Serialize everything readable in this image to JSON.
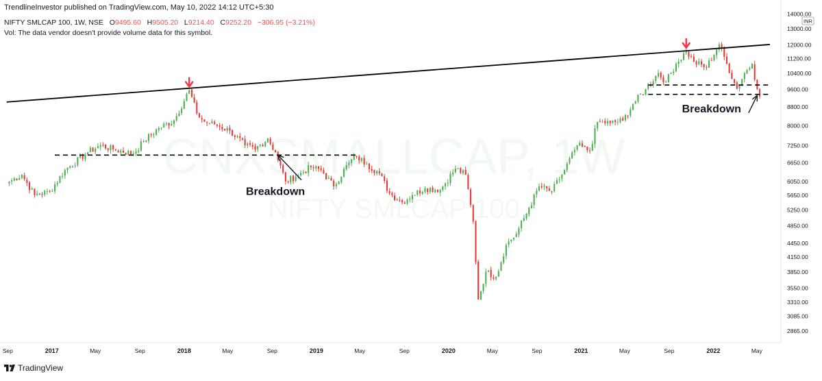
{
  "header": {
    "publisher": "TrendlineInvestor published on TradingView.com, May 10, 2022 14:12 UTC+5:30",
    "symbol": "NIFTY SMLCAP 100, 1W, NSE",
    "ohlc": {
      "o_label": "O",
      "o": "9495.60",
      "h_label": "H",
      "h": "9505.20",
      "l_label": "L",
      "l": "9214.40",
      "c_label": "C",
      "c": "9252.20",
      "change": "−306.95 (−3.21%)"
    },
    "vol_note": "Vol: The data vendor doesn't provide volume data for this symbol."
  },
  "watermark": {
    "line1": "CNXSMALLCAP, 1W",
    "line2": "NIFTY SMLCAP 100"
  },
  "footer": {
    "brand": "TradingView"
  },
  "colors": {
    "up": "#26a69a",
    "down": "#ef5350",
    "up_candle": "#4caf50",
    "down_candle": "#e53935",
    "arrow": "#f23645",
    "trendline": "#000000",
    "axis_text": "#131722"
  },
  "chart_data": {
    "type": "candlestick",
    "title": "NIFTY SMLCAP 100, 1W, NSE",
    "currency": "INR",
    "y_scale": "log",
    "ylim": [
      2700,
      14000
    ],
    "y_ticks": [
      "14000.00",
      "13000.00",
      "12000.00",
      "11200.00",
      "10400.00",
      "9600.00",
      "8800.00",
      "8000.00",
      "7250.00",
      "6650.00",
      "6050.00",
      "5650.00",
      "5250.00",
      "4850.00",
      "4450.00",
      "4150.00",
      "3850.00",
      "3550.00",
      "3310.00",
      "3085.00",
      "2865.00"
    ],
    "x_ticks": [
      "Sep",
      "2017",
      "May",
      "Sep",
      "2018",
      "May",
      "Sep",
      "2019",
      "May",
      "Sep",
      "2020",
      "May",
      "Sep",
      "2021",
      "May",
      "Sep",
      "2022",
      "May"
    ],
    "x_range": [
      "2016-09",
      "2022-05"
    ],
    "weekly_close_anchors": [
      [
        "2016-09-05",
        6050
      ],
      [
        "2016-10-10",
        6250
      ],
      [
        "2016-11-14",
        5650
      ],
      [
        "2016-12-26",
        5750
      ],
      [
        "2017-02-06",
        6400
      ],
      [
        "2017-04-10",
        7000
      ],
      [
        "2017-05-15",
        7250
      ],
      [
        "2017-06-19",
        7100
      ],
      [
        "2017-08-14",
        6950
      ],
      [
        "2017-09-11",
        7400
      ],
      [
        "2017-10-23",
        7900
      ],
      [
        "2017-12-04",
        8200
      ],
      [
        "2018-01-15",
        9550
      ],
      [
        "2018-02-05",
        8500
      ],
      [
        "2018-02-26",
        8150
      ],
      [
        "2018-03-26",
        8050
      ],
      [
        "2018-05-07",
        7800
      ],
      [
        "2018-06-18",
        7250
      ],
      [
        "2018-07-16",
        7100
      ],
      [
        "2018-08-20",
        7500
      ],
      [
        "2018-09-10",
        7000
      ],
      [
        "2018-10-08",
        6050
      ],
      [
        "2018-11-05",
        6200
      ],
      [
        "2018-12-17",
        6500
      ],
      [
        "2019-01-14",
        6400
      ],
      [
        "2019-02-18",
        5900
      ],
      [
        "2019-04-01",
        6650
      ],
      [
        "2019-04-22",
        6850
      ],
      [
        "2019-05-20",
        6600
      ],
      [
        "2019-06-24",
        6300
      ],
      [
        "2019-07-22",
        5700
      ],
      [
        "2019-08-26",
        5450
      ],
      [
        "2019-09-23",
        5650
      ],
      [
        "2019-10-28",
        5850
      ],
      [
        "2019-12-09",
        5800
      ],
      [
        "2020-01-20",
        6450
      ],
      [
        "2020-02-17",
        6250
      ],
      [
        "2020-03-09",
        4950
      ],
      [
        "2020-03-23",
        3350
      ],
      [
        "2020-04-13",
        3850
      ],
      [
        "2020-05-11",
        3750
      ],
      [
        "2020-06-08",
        4400
      ],
      [
        "2020-07-06",
        4650
      ],
      [
        "2020-08-10",
        5300
      ],
      [
        "2020-09-07",
        5900
      ],
      [
        "2020-10-12",
        5750
      ],
      [
        "2020-11-16",
        6400
      ],
      [
        "2020-12-21",
        7250
      ],
      [
        "2021-01-25",
        7050
      ],
      [
        "2021-02-15",
        8150
      ],
      [
        "2021-03-22",
        8100
      ],
      [
        "2021-04-26",
        8200
      ],
      [
        "2021-05-24",
        8900
      ],
      [
        "2021-06-28",
        9600
      ],
      [
        "2021-08-02",
        10400
      ],
      [
        "2021-08-23",
        9950
      ],
      [
        "2021-09-20",
        10900
      ],
      [
        "2021-10-18",
        11600
      ],
      [
        "2021-11-08",
        11000
      ],
      [
        "2021-12-13",
        10700
      ],
      [
        "2022-01-17",
        12000
      ],
      [
        "2022-02-07",
        10900
      ],
      [
        "2022-03-07",
        9600
      ],
      [
        "2022-03-28",
        10400
      ],
      [
        "2022-04-18",
        10900
      ],
      [
        "2022-05-02",
        9600
      ],
      [
        "2022-05-09",
        9252.2
      ]
    ],
    "annotations": [
      {
        "type": "trendline",
        "from": [
          "2016-08-29",
          9000
        ],
        "to": [
          "2022-06-06",
          12000
        ]
      },
      {
        "type": "dashed_hline",
        "from": "2017-01-09",
        "to": "2019-04-22",
        "price": 6900
      },
      {
        "type": "dashed_hline",
        "from": "2021-07-05",
        "to": "2022-06-06",
        "price": 9800
      },
      {
        "type": "dashed_hline",
        "from": "2021-07-05",
        "to": "2022-06-06",
        "price": 9350
      },
      {
        "type": "red_arrow",
        "date": "2018-01-15",
        "price": 9550
      },
      {
        "type": "red_arrow",
        "date": "2021-10-18",
        "price": 11600
      },
      {
        "type": "text_arrow",
        "text": "Breakdown",
        "text_at": [
          "2018-09-10",
          5650
        ],
        "points_to": [
          "2018-09-17",
          6900
        ]
      },
      {
        "type": "text_arrow",
        "text": "Breakdown",
        "text_at": [
          "2021-12-27",
          8550
        ],
        "points_to": [
          "2022-05-02",
          9300
        ]
      }
    ]
  }
}
